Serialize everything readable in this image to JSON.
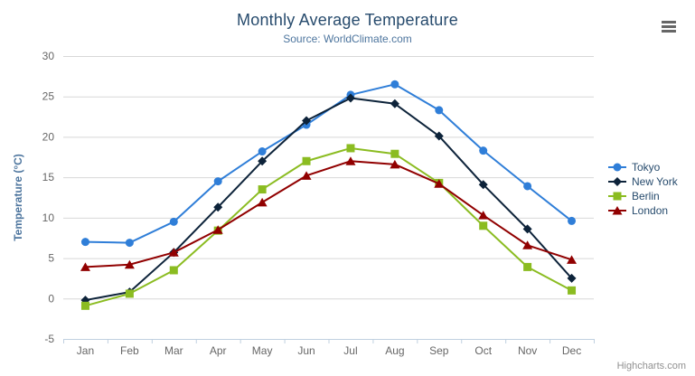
{
  "header": {
    "title": "Monthly Average Temperature",
    "subtitle": "Source: WorldClimate.com"
  },
  "credits": {
    "label": "Highcharts.com"
  },
  "context_menu": {
    "icon": "hamburger-menu-icon"
  },
  "chart_data": {
    "type": "line",
    "title": "Monthly Average Temperature",
    "subtitle": "Source: WorldClimate.com",
    "xlabel": "",
    "ylabel": "Temperature (°C)",
    "categories": [
      "Jan",
      "Feb",
      "Mar",
      "Apr",
      "May",
      "Jun",
      "Jul",
      "Aug",
      "Sep",
      "Oct",
      "Nov",
      "Dec"
    ],
    "series": [
      {
        "name": "Tokyo",
        "color": "#2f7ed8",
        "marker": "circle",
        "values": [
          7.0,
          6.9,
          9.5,
          14.5,
          18.2,
          21.5,
          25.2,
          26.5,
          23.3,
          18.3,
          13.9,
          9.6
        ]
      },
      {
        "name": "New York",
        "color": "#0d233a",
        "marker": "diamond",
        "values": [
          -0.2,
          0.8,
          5.7,
          11.3,
          17.0,
          22.0,
          24.8,
          24.1,
          20.1,
          14.1,
          8.6,
          2.5
        ]
      },
      {
        "name": "Berlin",
        "color": "#8bbc21",
        "marker": "square",
        "values": [
          -0.9,
          0.6,
          3.5,
          8.4,
          13.5,
          17.0,
          18.6,
          17.9,
          14.3,
          9.0,
          3.9,
          1.0
        ]
      },
      {
        "name": "London",
        "color": "#910000",
        "marker": "triangle",
        "values": [
          3.9,
          4.2,
          5.7,
          8.5,
          11.9,
          15.2,
          17.0,
          16.6,
          14.2,
          10.3,
          6.6,
          4.8
        ]
      }
    ],
    "ylim": [
      -5,
      30
    ],
    "ytick_step": 5,
    "grid": "horizontal",
    "legend_position": "right",
    "colors": {
      "title": "#274b6d",
      "subtitle": "#4d759e",
      "axis_title": "#4d759e",
      "axis_labels": "#666666",
      "gridline": "#d8d8d8",
      "axis_line": "#c0d0e0",
      "credits": "#909090"
    }
  }
}
